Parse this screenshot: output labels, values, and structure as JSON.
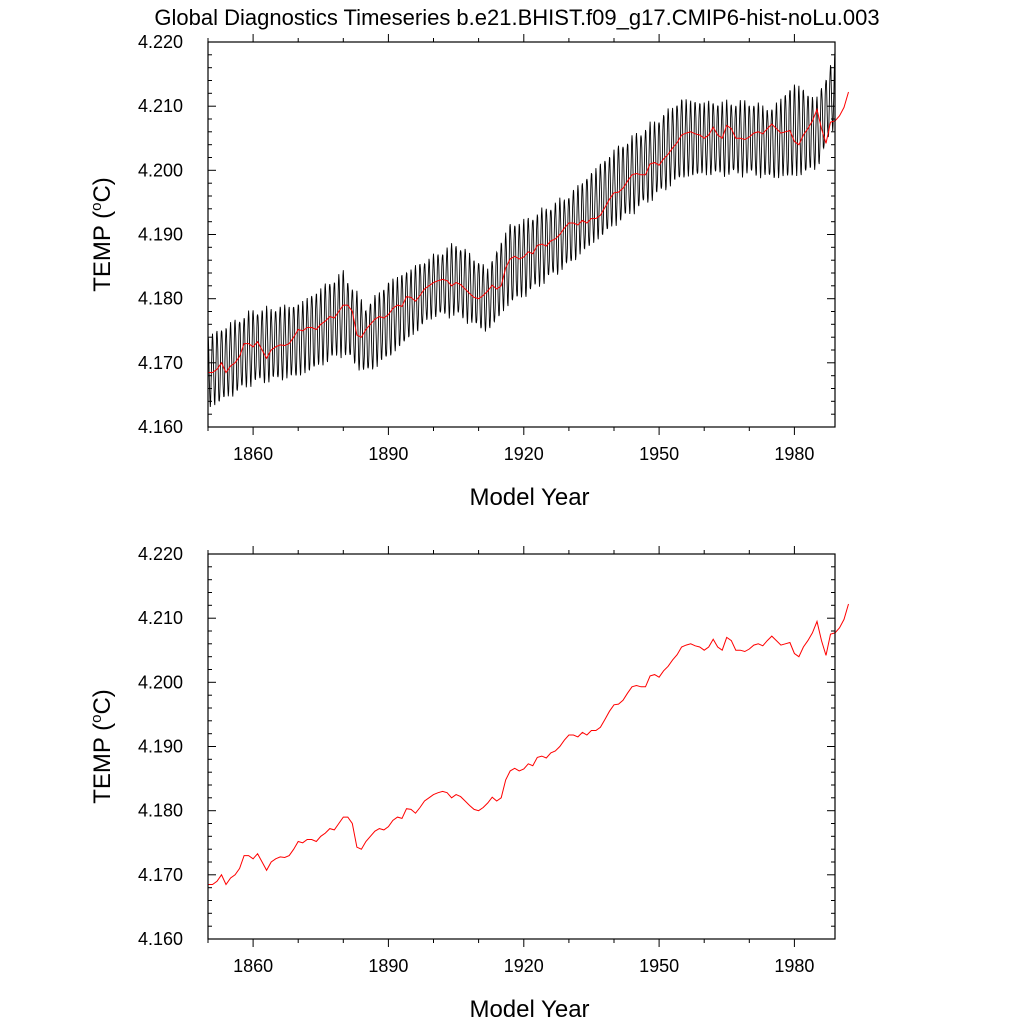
{
  "title": "Global Diagnostics Timeseries b.e21.BHIST.f09_g17.CMIP6-hist-noLu.003",
  "colors": {
    "monthly": "#000000",
    "annual": "#ff0000",
    "axis": "#000000"
  },
  "chart_data": [
    {
      "type": "line",
      "xlabel": "Model Year",
      "ylabel_main": "TEMP (",
      "ylabel_sup": "o",
      "ylabel_tail": "C)",
      "xlim": [
        1850,
        1989
      ],
      "ylim": [
        4.16,
        4.22
      ],
      "xticks": [
        1860,
        1890,
        1920,
        1950,
        1980
      ],
      "xtick_labels": [
        "1860",
        "1890",
        "1920",
        "1950",
        "1980"
      ],
      "yticks": [
        4.16,
        4.17,
        4.18,
        4.19,
        4.2,
        4.21,
        4.22
      ],
      "ytick_labels": [
        "4.160",
        "4.170",
        "4.180",
        "4.190",
        "4.200",
        "4.210",
        "4.220"
      ],
      "grid": false,
      "series": [
        {
          "kind": "monthly_envelope",
          "x_start": 1850,
          "x_end": 1989,
          "upper": [
            [
              1850,
              4.1745
            ],
            [
              1860,
              4.1785
            ],
            [
              1870,
              4.1795
            ],
            [
              1880,
              4.1845
            ],
            [
              1885,
              4.179
            ],
            [
              1890,
              4.183
            ],
            [
              1900,
              4.187
            ],
            [
              1905,
              4.189
            ],
            [
              1912,
              4.185
            ],
            [
              1917,
              4.192
            ],
            [
              1920,
              4.1925
            ],
            [
              1930,
              4.1965
            ],
            [
              1940,
              4.2035
            ],
            [
              1950,
              4.2085
            ],
            [
              1955,
              4.2115
            ],
            [
              1960,
              4.211
            ],
            [
              1970,
              4.211
            ],
            [
              1975,
              4.21
            ],
            [
              1980,
              4.214
            ],
            [
              1985,
              4.2115
            ],
            [
              1989,
              4.2185
            ]
          ],
          "lower": [
            [
              1850,
              4.1625
            ],
            [
              1860,
              4.1665
            ],
            [
              1870,
              4.1675
            ],
            [
              1880,
              4.171
            ],
            [
              1885,
              4.168
            ],
            [
              1890,
              4.1705
            ],
            [
              1900,
              4.177
            ],
            [
              1905,
              4.177
            ],
            [
              1912,
              4.1745
            ],
            [
              1917,
              4.179
            ],
            [
              1920,
              4.18
            ],
            [
              1930,
              4.185
            ],
            [
              1940,
              4.191
            ],
            [
              1950,
              4.196
            ],
            [
              1955,
              4.1985
            ],
            [
              1960,
              4.199
            ],
            [
              1970,
              4.199
            ],
            [
              1975,
              4.1985
            ],
            [
              1980,
              4.1985
            ],
            [
              1985,
              4.2
            ],
            [
              1989,
              4.207
            ]
          ]
        },
        {
          "kind": "annual",
          "x_start": 1850,
          "values": [
            4.1685,
            4.1685,
            4.169,
            4.17,
            4.1685,
            4.1695,
            4.17,
            4.171,
            4.173,
            4.173,
            4.1725,
            4.1733,
            4.172,
            4.1707,
            4.172,
            4.1725,
            4.1728,
            4.1727,
            4.173,
            4.174,
            4.1752,
            4.175,
            4.1755,
            4.1755,
            4.1752,
            4.176,
            4.1765,
            4.1772,
            4.177,
            4.178,
            4.179,
            4.179,
            4.178,
            4.1743,
            4.174,
            4.1752,
            4.176,
            4.1768,
            4.1772,
            4.177,
            4.1775,
            4.1785,
            4.179,
            4.1788,
            4.1803,
            4.1802,
            4.1796,
            4.1805,
            4.1815,
            4.182,
            4.1825,
            4.1828,
            4.183,
            4.1828,
            4.182,
            4.1825,
            4.1822,
            4.1815,
            4.1808,
            4.1802,
            4.18,
            4.1805,
            4.1812,
            4.1821,
            4.1815,
            4.182,
            4.1848,
            4.1862,
            4.1866,
            4.1862,
            4.1865,
            4.1873,
            4.187,
            4.1883,
            4.1885,
            4.1882,
            4.189,
            4.1893,
            4.19,
            4.191,
            4.1918,
            4.1918,
            4.1915,
            4.1922,
            4.1918,
            4.1925,
            4.1925,
            4.193,
            4.1942,
            4.1955,
            4.1965,
            4.1966,
            4.1972,
            4.1983,
            4.1993,
            4.1995,
            4.1993,
            4.1993,
            4.201,
            4.2012,
            4.2008,
            4.2018,
            4.2025,
            4.2035,
            4.2043,
            4.2055,
            4.2058,
            4.206,
            4.2057,
            4.2055,
            4.205,
            4.2055,
            4.2067,
            4.2055,
            4.205,
            4.207,
            4.2065,
            4.205,
            4.205,
            4.2048,
            4.2052,
            4.2058,
            4.206,
            4.2057,
            4.2065,
            4.2072,
            4.2065,
            4.2058,
            4.206,
            4.2062,
            4.2045,
            4.204,
            4.2055,
            4.2065,
            4.2077,
            4.2095,
            4.2065,
            4.2042,
            4.2075,
            4.2077,
            4.2085,
            4.2098,
            4.2122
          ]
        }
      ]
    },
    {
      "type": "line",
      "xlabel": "Model Year",
      "ylabel_main": "TEMP (",
      "ylabel_sup": "o",
      "ylabel_tail": "C)",
      "xlim": [
        1850,
        1989
      ],
      "ylim": [
        4.16,
        4.22
      ],
      "xticks": [
        1860,
        1890,
        1920,
        1950,
        1980
      ],
      "xtick_labels": [
        "1860",
        "1890",
        "1920",
        "1950",
        "1980"
      ],
      "yticks": [
        4.16,
        4.17,
        4.18,
        4.19,
        4.2,
        4.21,
        4.22
      ],
      "ytick_labels": [
        "4.160",
        "4.170",
        "4.180",
        "4.190",
        "4.200",
        "4.210",
        "4.220"
      ],
      "grid": false,
      "series": [
        {
          "kind": "annual",
          "x_start": 1850,
          "ref": 0
        }
      ]
    }
  ]
}
